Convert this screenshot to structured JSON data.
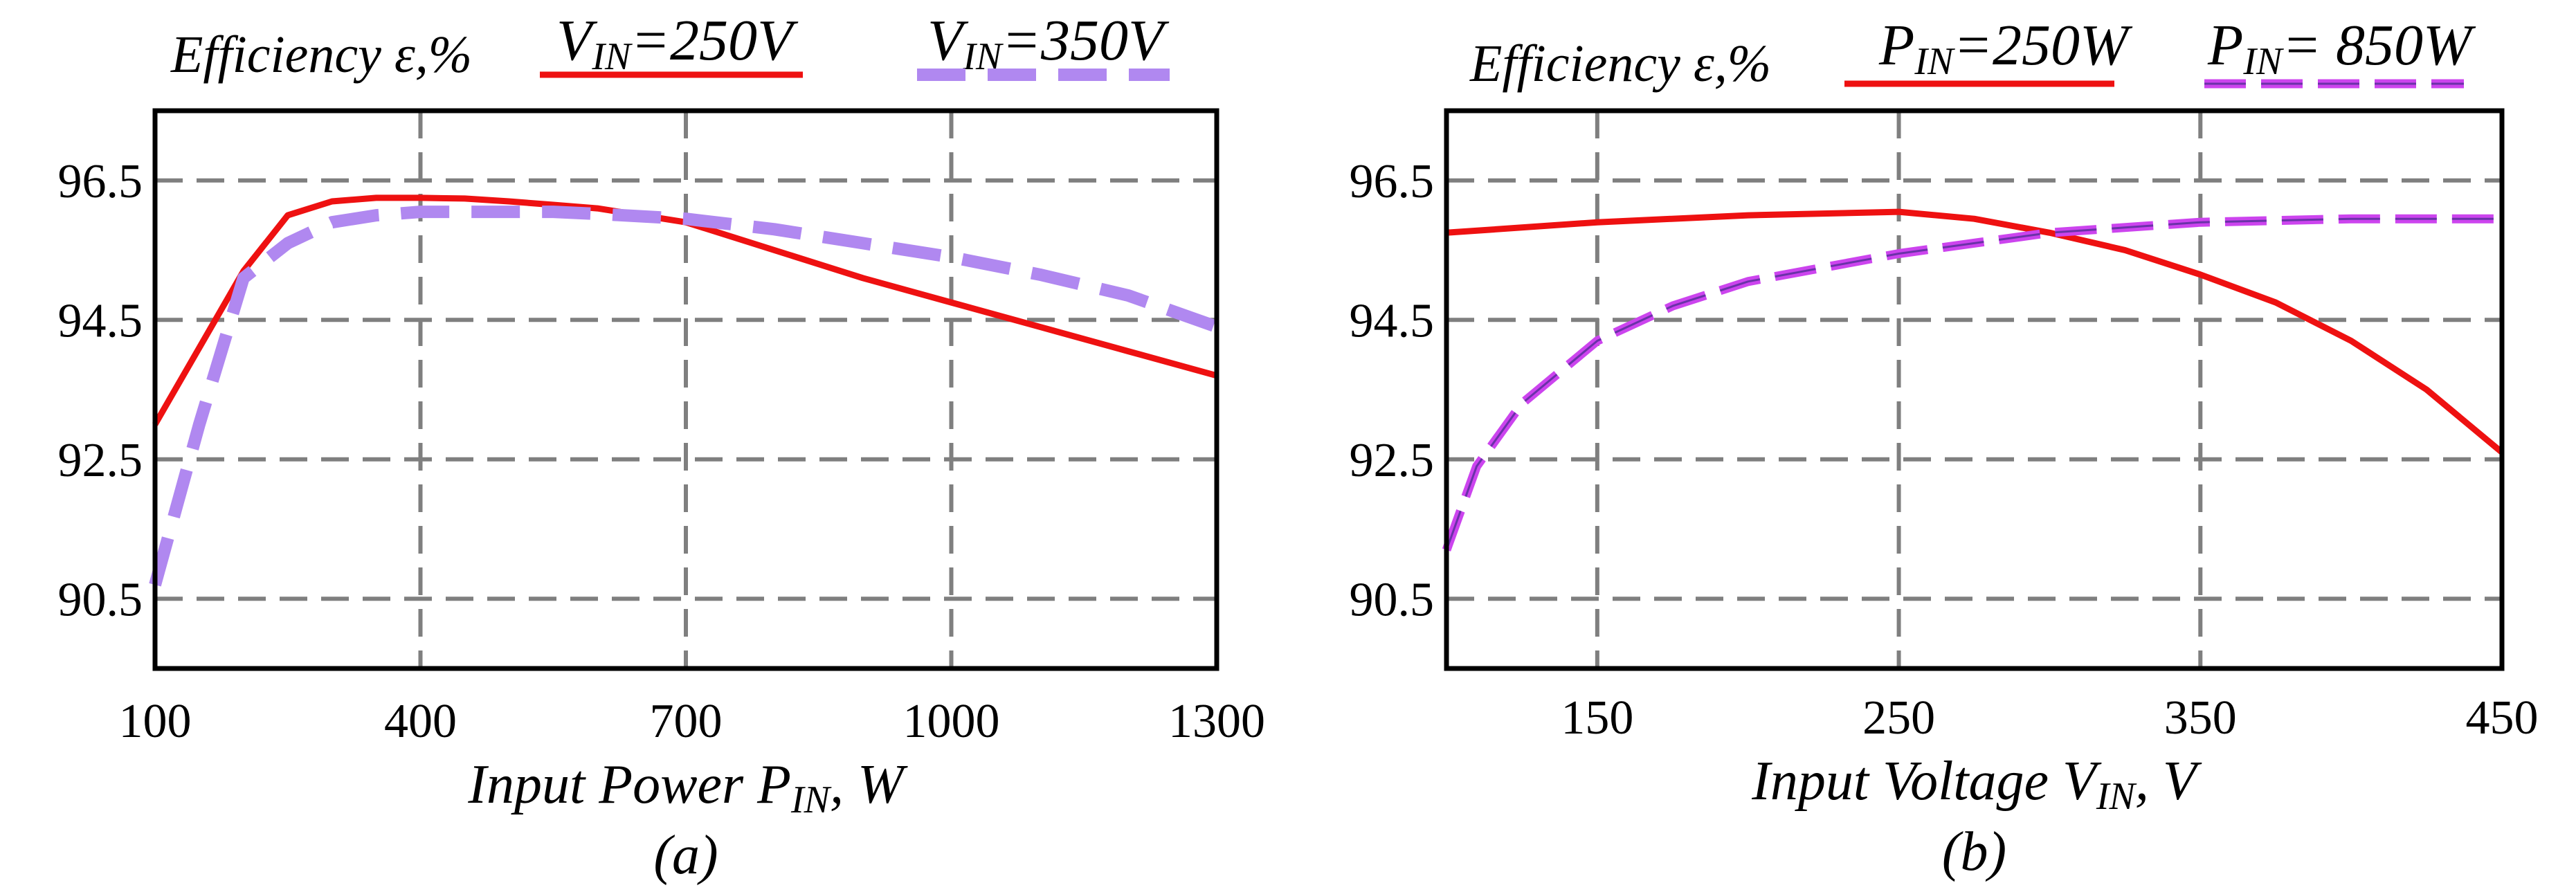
{
  "colors": {
    "solid": "#ee1111",
    "dashed_a": "#b088f0",
    "dashed_b": "#cc44ee",
    "dashed_b_core": "#6a32a8"
  },
  "chart_data": [
    {
      "type": "line",
      "title": "Efficiency ε,%",
      "caption": "(a)",
      "xlabel": "Input Power P",
      "xlabel_sub": "IN",
      "xlabel_unit": ", W",
      "ylabel": "Efficiency ε,%",
      "xlim": [
        100,
        1300
      ],
      "ylim": [
        89.5,
        97.5
      ],
      "xticks": [
        100,
        400,
        700,
        1000,
        1300
      ],
      "xtick_labels": [
        "100",
        "400",
        "700",
        "1000",
        "1300"
      ],
      "yticks": [
        90.5,
        92.5,
        94.5,
        96.5
      ],
      "ytick_labels": [
        "90.5",
        "92.5",
        "94.5",
        "96.5"
      ],
      "legend_pos": "top",
      "series": [
        {
          "name": "V_IN=250V",
          "legend_main": "V",
          "legend_sub": "IN",
          "legend_rest": "=250V",
          "style": "solid",
          "x": [
            100,
            150,
            200,
            250,
            300,
            350,
            400,
            450,
            500,
            550,
            600,
            650,
            700,
            800,
            900,
            1000,
            1100,
            1200,
            1300
          ],
          "y": [
            93.0,
            94.1,
            95.2,
            96.0,
            96.2,
            96.25,
            96.25,
            96.24,
            96.2,
            96.15,
            96.1,
            96.0,
            95.9,
            95.5,
            95.1,
            94.75,
            94.4,
            94.05,
            93.7
          ]
        },
        {
          "name": "V_IN=350V",
          "legend_main": "V",
          "legend_sub": "IN",
          "legend_rest": "=350V",
          "style": "dashed",
          "x": [
            100,
            150,
            200,
            250,
            300,
            350,
            400,
            450,
            500,
            550,
            600,
            700,
            800,
            900,
            1000,
            1100,
            1200,
            1300
          ],
          "y": [
            90.7,
            93.0,
            95.1,
            95.6,
            95.9,
            96.0,
            96.05,
            96.05,
            96.05,
            96.05,
            96.02,
            95.95,
            95.8,
            95.6,
            95.4,
            95.15,
            94.85,
            94.4
          ]
        }
      ]
    },
    {
      "type": "line",
      "title": "Efficiency ε,%",
      "caption": "(b)",
      "xlabel": "Input Voltage V",
      "xlabel_sub": "IN",
      "xlabel_unit": ", V",
      "ylabel": "Efficiency ε,%",
      "xlim": [
        100,
        450
      ],
      "ylim": [
        89.5,
        97.5
      ],
      "xticks": [
        150,
        250,
        350,
        450
      ],
      "xtick_labels": [
        "150",
        "250",
        "350",
        "450"
      ],
      "yticks": [
        90.5,
        92.5,
        94.5,
        96.5
      ],
      "ytick_labels": [
        "90.5",
        "92.5",
        "94.5",
        "96.5"
      ],
      "legend_pos": "top",
      "series": [
        {
          "name": "P_IN=250W",
          "legend_main": "P",
          "legend_sub": "IN",
          "legend_rest": "=250W",
          "style": "solid",
          "x": [
            100,
            150,
            200,
            250,
            275,
            300,
            325,
            350,
            375,
            400,
            425,
            450
          ],
          "y": [
            95.75,
            95.9,
            96.0,
            96.05,
            95.95,
            95.75,
            95.5,
            95.15,
            94.75,
            94.2,
            93.5,
            92.6
          ]
        },
        {
          "name": "P_IN= 850W",
          "legend_main": "P",
          "legend_sub": "IN",
          "legend_rest": "= 850W",
          "style": "dashed-double",
          "x": [
            100,
            110,
            125,
            150,
            175,
            200,
            250,
            300,
            350,
            400,
            450
          ],
          "y": [
            91.2,
            92.4,
            93.3,
            94.2,
            94.7,
            95.05,
            95.45,
            95.75,
            95.9,
            95.95,
            95.95
          ]
        }
      ]
    }
  ]
}
